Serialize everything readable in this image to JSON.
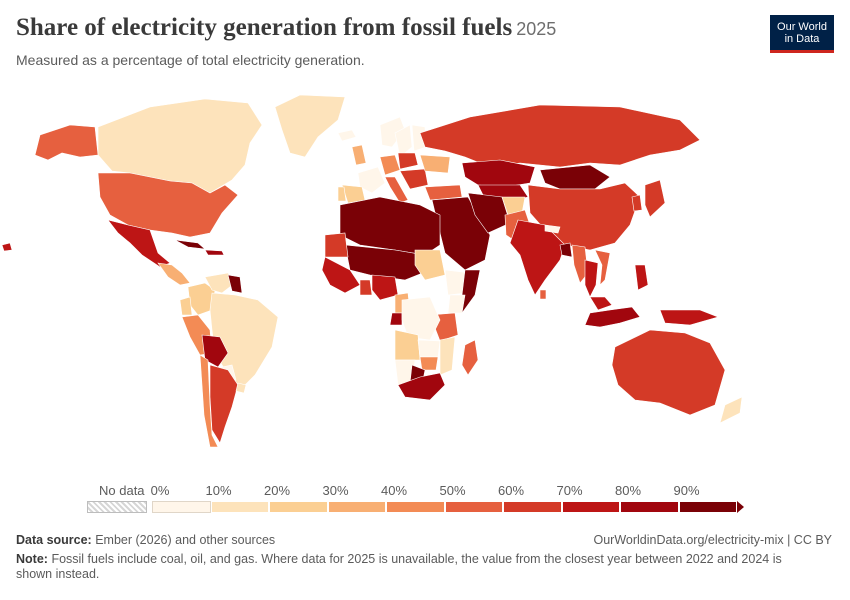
{
  "header": {
    "title": "Share of electricity generation from fossil fuels",
    "year": "2025",
    "subtitle": "Measured as a percentage of total electricity generation."
  },
  "logo": {
    "line1": "Our World",
    "line2": "in Data"
  },
  "legend": {
    "no_data_label": "No data",
    "ticks": [
      "0%",
      "10%",
      "20%",
      "30%",
      "40%",
      "50%",
      "60%",
      "70%",
      "80%",
      "90%"
    ],
    "colors": [
      "#fff6ea",
      "#fde3bb",
      "#fbcf93",
      "#f8af73",
      "#f38b55",
      "#e6603f",
      "#d43a27",
      "#bd1515",
      "#a1060e",
      "#7a0106"
    ]
  },
  "footer": {
    "source_label": "Data source:",
    "source_text": "Ember (2026) and other sources",
    "url": "OurWorldinData.org/electricity-mix | CC BY",
    "note_label": "Note:",
    "note_text": "Fossil fuels include coal, oil, and gas. Where data for 2025 is unavailable, the value from the closest year between 2022 and 2024 is shown instead."
  },
  "map_data": {
    "regions": [
      {
        "name": "Canada",
        "value": 18
      },
      {
        "name": "United States",
        "value": 58
      },
      {
        "name": "Mexico",
        "value": 78
      },
      {
        "name": "Greenland",
        "value": 15
      },
      {
        "name": "Alaska",
        "value": 58
      },
      {
        "name": "Central America",
        "value": 35
      },
      {
        "name": "Cuba",
        "value": 95
      },
      {
        "name": "Caribbean",
        "value": 85
      },
      {
        "name": "Colombia",
        "value": 25
      },
      {
        "name": "Venezuela",
        "value": 15
      },
      {
        "name": "Guyana",
        "value": 95
      },
      {
        "name": "Ecuador",
        "value": 20
      },
      {
        "name": "Peru",
        "value": 40
      },
      {
        "name": "Brazil",
        "value": 12
      },
      {
        "name": "Bolivia",
        "value": 80
      },
      {
        "name": "Paraguay",
        "value": 0
      },
      {
        "name": "Chile",
        "value": 45
      },
      {
        "name": "Argentina",
        "value": 60
      },
      {
        "name": "Uruguay",
        "value": 10
      },
      {
        "name": "Iceland",
        "value": 0
      },
      {
        "name": "United Kingdom",
        "value": 35
      },
      {
        "name": "Norway",
        "value": 2
      },
      {
        "name": "Sweden",
        "value": 2
      },
      {
        "name": "Finland",
        "value": 8
      },
      {
        "name": "France",
        "value": 8
      },
      {
        "name": "Spain",
        "value": 25
      },
      {
        "name": "Portugal",
        "value": 20
      },
      {
        "name": "Germany",
        "value": 40
      },
      {
        "name": "Poland",
        "value": 65
      },
      {
        "name": "Italy",
        "value": 50
      },
      {
        "name": "Balkans",
        "value": 60
      },
      {
        "name": "Ukraine",
        "value": 35
      },
      {
        "name": "Turkey",
        "value": 58
      },
      {
        "name": "Russia",
        "value": 63
      },
      {
        "name": "Kazakhstan",
        "value": 88
      },
      {
        "name": "Central Asia",
        "value": 85
      },
      {
        "name": "Mongolia",
        "value": 95
      },
      {
        "name": "China",
        "value": 60
      },
      {
        "name": "Korea",
        "value": 62
      },
      {
        "name": "Japan",
        "value": 68
      },
      {
        "name": "Middle East",
        "value": 95
      },
      {
        "name": "Iran",
        "value": 92
      },
      {
        "name": "Afghanistan",
        "value": 22
      },
      {
        "name": "Pakistan",
        "value": 50
      },
      {
        "name": "India",
        "value": 74
      },
      {
        "name": "Nepal",
        "value": 0
      },
      {
        "name": "Bangladesh",
        "value": 90
      },
      {
        "name": "Sri Lanka",
        "value": 50
      },
      {
        "name": "Myanmar",
        "value": 50
      },
      {
        "name": "Thailand",
        "value": 78
      },
      {
        "name": "Vietnam",
        "value": 55
      },
      {
        "name": "Malaysia",
        "value": 78
      },
      {
        "name": "Indonesia",
        "value": 82
      },
      {
        "name": "Philippines",
        "value": 75
      },
      {
        "name": "Papua New Guinea",
        "value": 70
      },
      {
        "name": "Australia",
        "value": 65
      },
      {
        "name": "New Zealand",
        "value": 15
      },
      {
        "name": "North Africa",
        "value": 96
      },
      {
        "name": "Sahel",
        "value": 90
      },
      {
        "name": "Mauritania",
        "value": 65
      },
      {
        "name": "West Africa",
        "value": 78
      },
      {
        "name": "Ghana",
        "value": 60
      },
      {
        "name": "Nigeria",
        "value": 78
      },
      {
        "name": "Sudan",
        "value": 28
      },
      {
        "name": "Ethiopia",
        "value": 0
      },
      {
        "name": "Somalia",
        "value": 95
      },
      {
        "name": "Kenya",
        "value": 8
      },
      {
        "name": "Tanzania",
        "value": 55
      },
      {
        "name": "Cameroon",
        "value": 35
      },
      {
        "name": "Gabon",
        "value": 80
      },
      {
        "name": "DR Congo",
        "value": 2
      },
      {
        "name": "Angola",
        "value": 25
      },
      {
        "name": "Zambia",
        "value": 8
      },
      {
        "name": "Mozambique",
        "value": 10
      },
      {
        "name": "Zimbabwe",
        "value": 45
      },
      {
        "name": "Namibia",
        "value": 5
      },
      {
        "name": "Botswana",
        "value": 98
      },
      {
        "name": "South Africa",
        "value": 85
      },
      {
        "name": "Madagascar",
        "value": 55
      },
      {
        "name": "Hawaii",
        "value": 70
      }
    ]
  }
}
